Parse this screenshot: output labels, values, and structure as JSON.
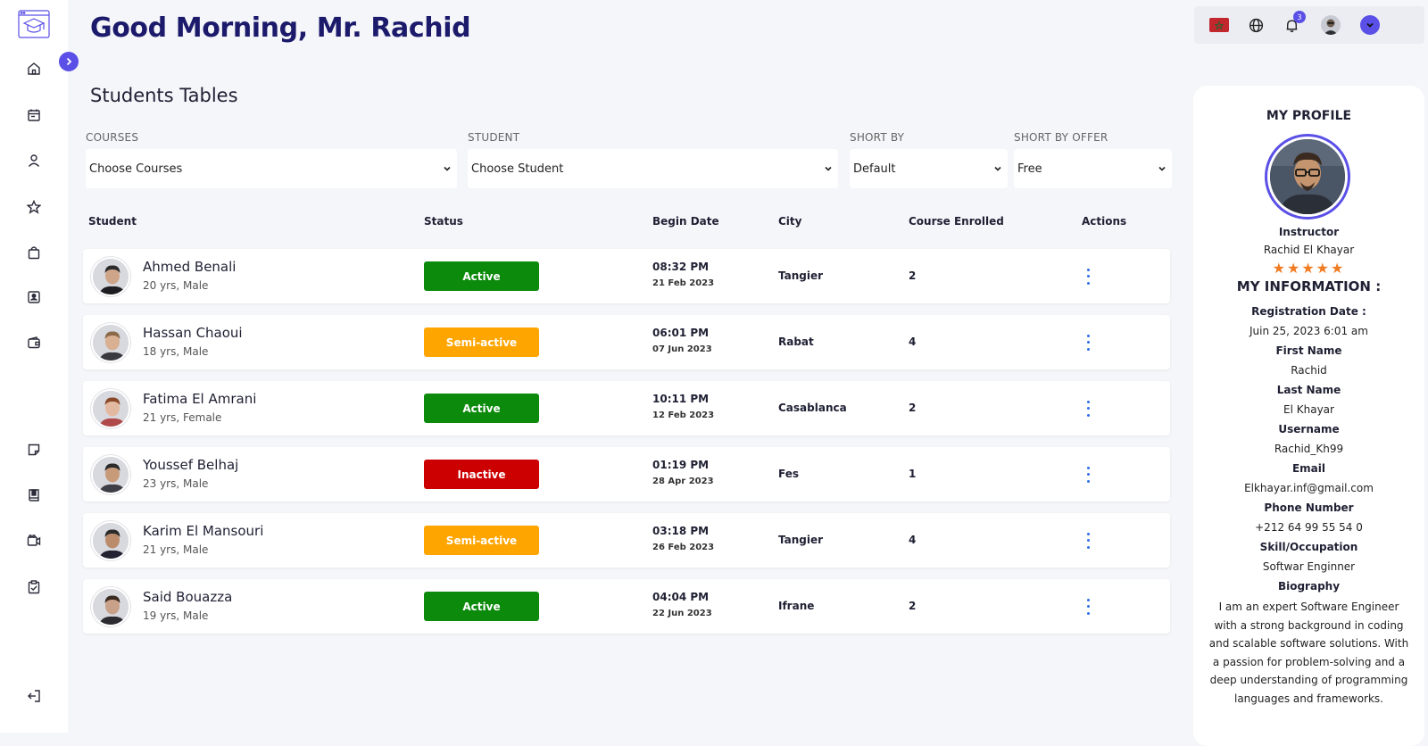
{
  "header": {
    "greeting": "Good Morning, Mr. Rachid",
    "section_title": "Students Tables"
  },
  "filters": [
    {
      "label": "COURSES",
      "value": "Choose Courses"
    },
    {
      "label": "STUDENT",
      "value": "Choose Student"
    },
    {
      "label": "SHORT BY",
      "value": "Default"
    },
    {
      "label": "SHORT BY OFFER",
      "value": "Free"
    }
  ],
  "table": {
    "columns": [
      "Student",
      "Status",
      "Begin Date",
      "City",
      "Course Enrolled",
      "Actions"
    ],
    "rows": [
      {
        "name": "Ahmed Benali",
        "meta": "20 yrs, Male",
        "status": "Active",
        "time": "08:32 PM",
        "date": "21 Feb 2023",
        "city": "Tangier",
        "enrolled": "2"
      },
      {
        "name": "Hassan Chaoui",
        "meta": "18 yrs, Male",
        "status": "Semi-active",
        "time": "06:01 PM",
        "date": "07 Jun 2023",
        "city": "Rabat",
        "enrolled": "4"
      },
      {
        "name": "Fatima El Amrani",
        "meta": "21 yrs, Female",
        "status": "Active",
        "time": "10:11 PM",
        "date": "12 Feb 2023",
        "city": "Casablanca",
        "enrolled": "2"
      },
      {
        "name": "Youssef Belhaj",
        "meta": "23 yrs, Male",
        "status": "Inactive",
        "time": "01:19 PM",
        "date": "28 Apr 2023",
        "city": "Fes",
        "enrolled": "1"
      },
      {
        "name": "Karim El Mansouri",
        "meta": "21 yrs, Male",
        "status": "Semi-active",
        "time": "03:18 PM",
        "date": "26 Feb 2023",
        "city": "Tangier",
        "enrolled": "4"
      },
      {
        "name": "Said Bouazza",
        "meta": "19 yrs, Male",
        "status": "Active",
        "time": "04:04 PM",
        "date": "22 Jun 2023",
        "city": "Ifrane",
        "enrolled": "2"
      }
    ]
  },
  "status_colors": {
    "Active": "#0c8a0c",
    "Semi-active": "#ffa500",
    "Inactive": "#cc0000"
  },
  "topbar": {
    "notification_count": "3",
    "icons": [
      "flag-icon",
      "globe-icon",
      "bell-icon",
      "avatar",
      "chevron-down-icon"
    ]
  },
  "sidebar": {
    "icons": [
      "home-icon",
      "calendar-icon",
      "user-icon",
      "star-icon",
      "bag-icon",
      "id-card-icon",
      "wallet-icon",
      "note-icon",
      "book-icon",
      "video-icon",
      "clipboard-check-icon",
      "logout-icon"
    ]
  },
  "profile": {
    "title": "MY PROFILE",
    "role": "Instructor",
    "name": "Rachid El Khayar",
    "rating": 5,
    "stars": "★★★★★",
    "info_title": "MY INFORMATION :",
    "fields": [
      {
        "label": "Registration Date :",
        "value": "Juin 25, 2023 6:01 am"
      },
      {
        "label": "First Name",
        "value": "Rachid"
      },
      {
        "label": "Last Name",
        "value": "El Khayar"
      },
      {
        "label": "Username",
        "value": "Rachid_Kh99"
      },
      {
        "label": "Email",
        "value": "Elkhayar.inf@gmail.com"
      },
      {
        "label": "Phone Number",
        "value": "+212 64 99 55 54 0"
      },
      {
        "label": "Skill/Occupation",
        "value": "Softwar Enginner"
      }
    ],
    "bio_label": "Biography",
    "bio": "I am an expert Software Engineer with a strong background in coding and scalable software solutions. With a passion for problem-solving and a deep understanding of programming languages and frameworks."
  },
  "colors": {
    "accent": "#5a4fe6",
    "title": "#1c1a6b",
    "background": "#f5f6fa",
    "star": "#f07b22",
    "kebab": "#2f6ee8"
  }
}
